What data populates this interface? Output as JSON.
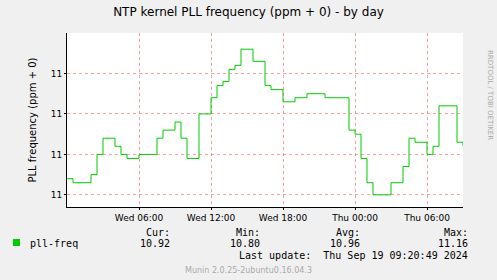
{
  "chart_data": {
    "type": "line",
    "title": "NTP kernel PLL frequency (ppm + 0) - by day",
    "y_label": "PLL frequency (ppm + 0)",
    "categories": [
      null,
      null,
      null,
      null,
      null,
      null,
      null,
      null,
      null,
      null,
      null,
      null,
      "Wed 06:00",
      null,
      null,
      null,
      null,
      null,
      null,
      null,
      null,
      null,
      null,
      null,
      "Wed 12:00",
      null,
      null,
      null,
      null,
      null,
      null,
      null,
      null,
      null,
      null,
      null,
      "Wed 18:00",
      null,
      null,
      null,
      null,
      null,
      null,
      null,
      null,
      null,
      null,
      null,
      "Thu 00:00",
      null,
      null,
      null,
      null,
      null,
      null,
      null,
      null,
      null,
      null,
      null,
      "Thu 06:00",
      null,
      null,
      null,
      null,
      null,
      null
    ],
    "series": [
      {
        "name": "pll-freq",
        "color": "#00cc00",
        "line_style": "step",
        "values": [
          10.84,
          10.83,
          10.83,
          10.83,
          10.85,
          10.9,
          10.94,
          10.94,
          10.92,
          10.9,
          10.89,
          10.89,
          10.9,
          10.9,
          10.9,
          10.94,
          10.96,
          10.96,
          10.98,
          10.94,
          10.89,
          10.89,
          11.0,
          11.0,
          11.04,
          11.07,
          11.08,
          11.11,
          11.12,
          11.16,
          11.16,
          11.13,
          11.13,
          11.07,
          11.06,
          11.06,
          11.03,
          11.03,
          11.04,
          11.04,
          11.05,
          11.05,
          11.05,
          11.04,
          11.04,
          11.04,
          11.04,
          10.96,
          10.95,
          10.89,
          10.83,
          10.8,
          10.8,
          10.8,
          10.83,
          10.83,
          10.87,
          10.94,
          10.93,
          10.93,
          10.9,
          10.92,
          11.02,
          11.02,
          11.02,
          10.93,
          10.92
        ]
      }
    ],
    "ylim": [
      10.77,
      11.2
    ],
    "yticks": [
      {
        "value": 10.8,
        "label": "11"
      },
      {
        "value": 10.9,
        "label": "11"
      },
      {
        "value": 11.0,
        "label": "11"
      },
      {
        "value": 11.1,
        "label": "11"
      }
    ],
    "grid": true,
    "legend_stats": [
      {
        "label": "Cur:",
        "text": "10.92"
      },
      {
        "label": "Min:",
        "text": "10.80"
      },
      {
        "label": "Avg:",
        "text": "10.96"
      },
      {
        "label": "Max:",
        "text": "11.16"
      }
    ],
    "last_update": "Last update:  Thu Sep 19 09:20:49 2024",
    "footer": "Munin 2.0.25-2ubuntu0.16.04.3",
    "watermark": "RRDTOOL / TOBI OETIKER"
  }
}
